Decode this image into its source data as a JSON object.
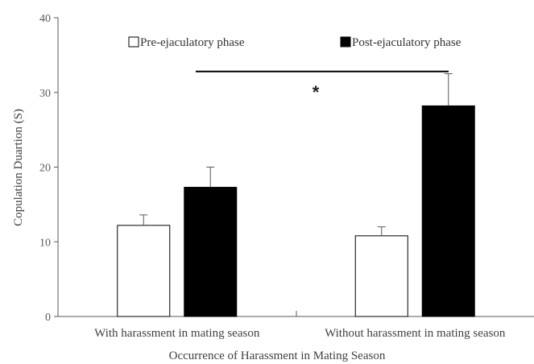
{
  "chart_data": {
    "type": "bar",
    "title": "",
    "xlabel": "Occurrence of Harassment in Mating Season",
    "ylabel": "Copulation Duartion (S)",
    "ylim": [
      0,
      40
    ],
    "yticks": [
      0,
      10,
      20,
      30,
      40
    ],
    "grid": false,
    "legend_position": "top",
    "categories": [
      "With harassment in mating season",
      "Without harassment in mating season"
    ],
    "series": [
      {
        "name": "Pre-ejaculatory phase",
        "values": [
          12.2,
          10.8
        ],
        "errors": [
          1.4,
          1.2
        ],
        "color": "#ffffff",
        "stroke": "#000000"
      },
      {
        "name": "Post-ejaculatory phase",
        "values": [
          17.3,
          28.2
        ],
        "errors": [
          2.7,
          4.3
        ],
        "color": "#000000",
        "stroke": "#000000"
      }
    ],
    "annotations": [
      {
        "type": "significance",
        "text": "*",
        "between": [
          "With harassment in mating season",
          "Without harassment in mating season"
        ],
        "y": 32.8
      }
    ]
  }
}
